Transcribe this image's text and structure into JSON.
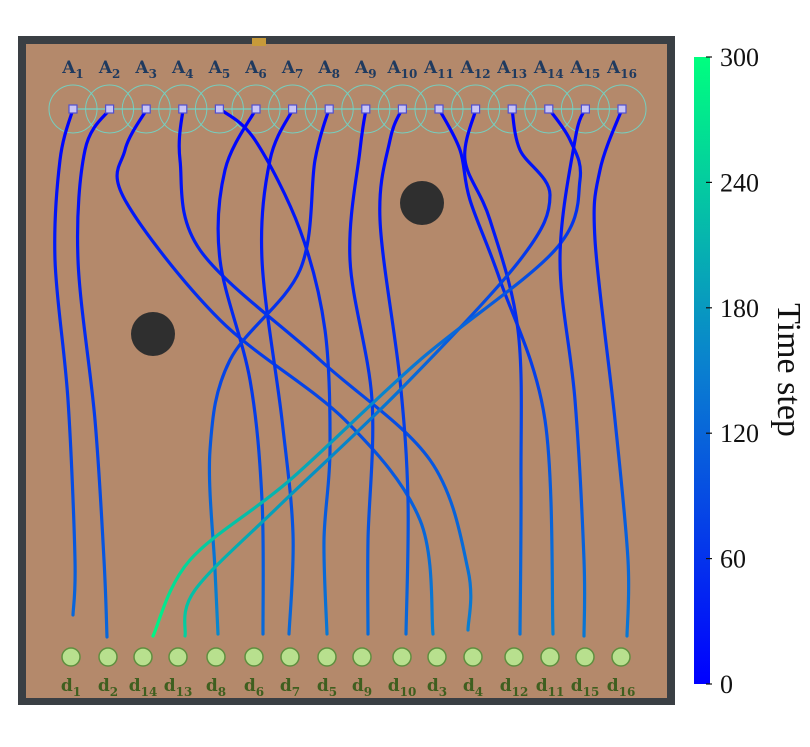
{
  "agents": [
    {
      "name": "A",
      "sub": "1"
    },
    {
      "name": "A",
      "sub": "2"
    },
    {
      "name": "A",
      "sub": "3"
    },
    {
      "name": "A",
      "sub": "4"
    },
    {
      "name": "A",
      "sub": "5"
    },
    {
      "name": "A",
      "sub": "6"
    },
    {
      "name": "A",
      "sub": "7"
    },
    {
      "name": "A",
      "sub": "8"
    },
    {
      "name": "A",
      "sub": "9"
    },
    {
      "name": "A",
      "sub": "10"
    },
    {
      "name": "A",
      "sub": "11"
    },
    {
      "name": "A",
      "sub": "12"
    },
    {
      "name": "A",
      "sub": "13"
    },
    {
      "name": "A",
      "sub": "14"
    },
    {
      "name": "A",
      "sub": "15"
    },
    {
      "name": "A",
      "sub": "16"
    }
  ],
  "destinations": [
    {
      "name": "d",
      "sub": "1"
    },
    {
      "name": "d",
      "sub": "2"
    },
    {
      "name": "d",
      "sub": "14"
    },
    {
      "name": "d",
      "sub": "13"
    },
    {
      "name": "d",
      "sub": "8"
    },
    {
      "name": "d",
      "sub": "6"
    },
    {
      "name": "d",
      "sub": "7"
    },
    {
      "name": "d",
      "sub": "5"
    },
    {
      "name": "d",
      "sub": "9"
    },
    {
      "name": "d",
      "sub": "10"
    },
    {
      "name": "d",
      "sub": "3"
    },
    {
      "name": "d",
      "sub": "4"
    },
    {
      "name": "d",
      "sub": "12"
    },
    {
      "name": "d",
      "sub": "11"
    },
    {
      "name": "d",
      "sub": "15"
    },
    {
      "name": "d",
      "sub": "16"
    }
  ],
  "trajectories": [
    {
      "agent": 1,
      "dest_slot": 1,
      "end_time": 122
    },
    {
      "agent": 2,
      "dest_slot": 2,
      "end_time": 122
    },
    {
      "agent": 3,
      "dest_slot": 11,
      "end_time": 150
    },
    {
      "agent": 4,
      "dest_slot": 12,
      "end_time": 150
    },
    {
      "agent": 5,
      "dest_slot": 8,
      "end_time": 140
    },
    {
      "agent": 6,
      "dest_slot": 6,
      "end_time": 125
    },
    {
      "agent": 7,
      "dest_slot": 7,
      "end_time": 125
    },
    {
      "agent": 8,
      "dest_slot": 5,
      "end_time": 160
    },
    {
      "agent": 9,
      "dest_slot": 9,
      "end_time": 125
    },
    {
      "agent": 10,
      "dest_slot": 10,
      "end_time": 125
    },
    {
      "agent": 11,
      "dest_slot": 14,
      "end_time": 150
    },
    {
      "agent": 12,
      "dest_slot": 13,
      "end_time": 135
    },
    {
      "agent": 13,
      "dest_slot": 4,
      "end_time": 245
    },
    {
      "agent": 14,
      "dest_slot": 3,
      "end_time": 290
    },
    {
      "agent": 15,
      "dest_slot": 15,
      "end_time": 140
    },
    {
      "agent": 16,
      "dest_slot": 16,
      "end_time": 140
    }
  ],
  "obstacles": [
    {
      "name": "obstacle-upper-right"
    },
    {
      "name": "obstacle-left"
    }
  ],
  "colorbar": {
    "title": "Time step",
    "min": 0,
    "max": 300,
    "ticks": [
      "0",
      "60",
      "120",
      "180",
      "240",
      "300"
    ],
    "color_low": "#0000ff",
    "color_high": "#00ff7f"
  },
  "colors": {
    "arena": "#b4896b",
    "frame": "#3a3f44",
    "obstacle": "#2f2f2f",
    "destination_fill": "#b8e08e",
    "destination_stroke": "#5f8f3f",
    "agent_fill": "#c9c5f5",
    "agent_range": "#6fd6c8"
  }
}
